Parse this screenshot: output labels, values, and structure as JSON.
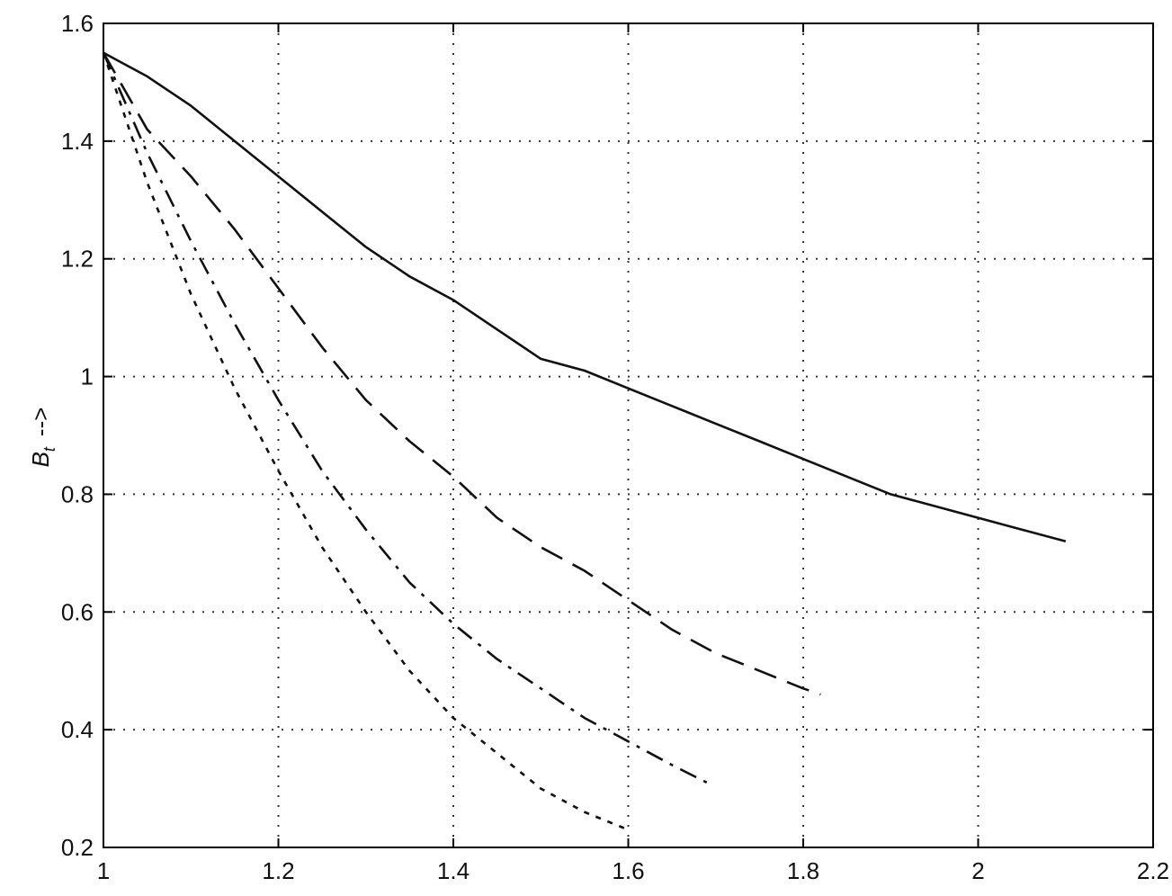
{
  "chart_data": {
    "type": "line",
    "title": "",
    "xlabel": "",
    "ylabel": "B_t -->",
    "ylabel_main": "B",
    "ylabel_sub": "t",
    "ylabel_arrow": "-->",
    "xlim": [
      1,
      2.2
    ],
    "ylim": [
      0.2,
      1.6
    ],
    "grid": true,
    "xticks": [
      1,
      1.2,
      1.4,
      1.6,
      1.8,
      2,
      2.2
    ],
    "xtick_labels": [
      "1",
      "1.2",
      "1.4",
      "1.6",
      "1.8",
      "2",
      "2.2"
    ],
    "yticks": [
      0.2,
      0.4,
      0.6,
      0.8,
      1,
      1.2,
      1.4,
      1.6
    ],
    "ytick_labels": [
      "0.2",
      "0.4",
      "0.6",
      "0.8",
      "1",
      "1.2",
      "1.4",
      "1.6"
    ],
    "series": [
      {
        "style": "solid",
        "x": [
          1.0,
          1.05,
          1.1,
          1.15,
          1.2,
          1.25,
          1.3,
          1.35,
          1.4,
          1.45,
          1.5,
          1.55,
          1.6,
          1.65,
          1.7,
          1.75,
          1.8,
          1.85,
          1.9,
          1.95,
          2.0,
          2.05,
          2.1
        ],
        "y": [
          1.55,
          1.51,
          1.46,
          1.4,
          1.34,
          1.28,
          1.22,
          1.17,
          1.13,
          1.08,
          1.03,
          1.01,
          0.98,
          0.95,
          0.92,
          0.89,
          0.86,
          0.83,
          0.8,
          0.78,
          0.76,
          0.74,
          0.72
        ]
      },
      {
        "style": "dashed",
        "x": [
          1.0,
          1.05,
          1.1,
          1.15,
          1.2,
          1.25,
          1.3,
          1.35,
          1.4,
          1.45,
          1.5,
          1.55,
          1.6,
          1.65,
          1.7,
          1.75,
          1.8,
          1.82
        ],
        "y": [
          1.55,
          1.42,
          1.34,
          1.25,
          1.15,
          1.05,
          0.96,
          0.89,
          0.83,
          0.76,
          0.71,
          0.67,
          0.62,
          0.57,
          0.53,
          0.5,
          0.47,
          0.46
        ]
      },
      {
        "style": "dashdot",
        "x": [
          1.0,
          1.05,
          1.1,
          1.15,
          1.2,
          1.25,
          1.3,
          1.35,
          1.4,
          1.45,
          1.5,
          1.55,
          1.6,
          1.65,
          1.69
        ],
        "y": [
          1.55,
          1.38,
          1.23,
          1.09,
          0.96,
          0.84,
          0.74,
          0.65,
          0.58,
          0.52,
          0.47,
          0.42,
          0.38,
          0.34,
          0.31
        ]
      },
      {
        "style": "dotted",
        "x": [
          1.0,
          1.05,
          1.1,
          1.15,
          1.2,
          1.25,
          1.3,
          1.35,
          1.4,
          1.45,
          1.5,
          1.55,
          1.6
        ],
        "y": [
          1.55,
          1.33,
          1.14,
          0.98,
          0.84,
          0.71,
          0.6,
          0.5,
          0.42,
          0.36,
          0.3,
          0.26,
          0.23
        ]
      }
    ],
    "colors": {
      "line": "#111111",
      "grid": "#333333",
      "axis": "#000000"
    }
  }
}
